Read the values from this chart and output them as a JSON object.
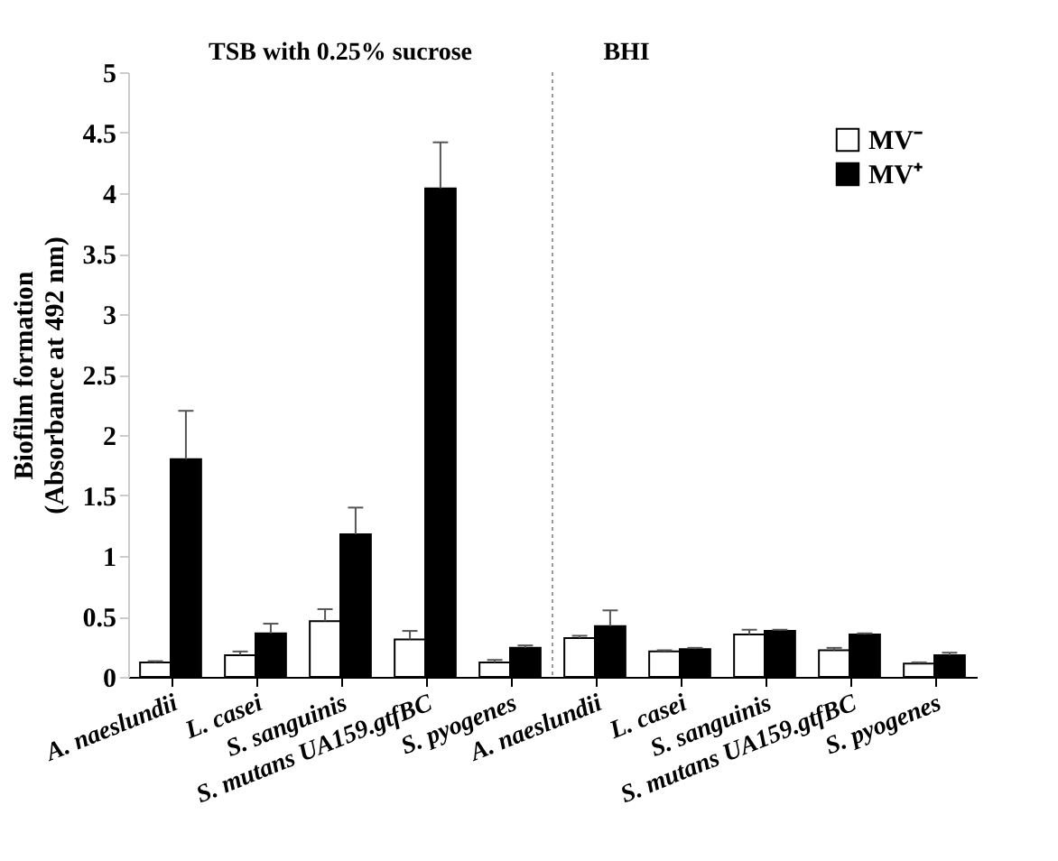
{
  "chart_data": {
    "type": "bar",
    "categories": [
      "A. naeslundii",
      "L. casei",
      "S. sanguinis",
      "S. mutans UA159.gtfBC",
      "S. pyogenes",
      "A. naeslundii",
      "L. casei",
      "S. sanguinis",
      "S. mutans UA159.gtfBC",
      "S. pyogenes"
    ],
    "series": [
      {
        "name": "MV⁻",
        "color": "#ffffff",
        "values": [
          0.12,
          0.18,
          0.46,
          0.31,
          0.12,
          0.32,
          0.21,
          0.35,
          0.22,
          0.11
        ],
        "errors": [
          [
            0.12,
            0.13
          ],
          [
            0.18,
            0.21
          ],
          [
            0.46,
            0.56
          ],
          [
            0.31,
            0.38
          ],
          [
            0.12,
            0.14
          ],
          [
            0.32,
            0.34
          ],
          [
            0.21,
            0.22
          ],
          [
            0.35,
            0.39
          ],
          [
            0.22,
            0.24
          ],
          [
            0.11,
            0.12
          ]
        ]
      },
      {
        "name": "MV⁺",
        "color": "#000000",
        "values": [
          1.8,
          0.36,
          1.18,
          4.04,
          0.24,
          0.42,
          0.23,
          0.38,
          0.35,
          0.18
        ],
        "errors": [
          [
            1.8,
            2.2
          ],
          [
            0.36,
            0.44
          ],
          [
            1.18,
            1.4
          ],
          [
            4.04,
            4.42
          ],
          [
            0.24,
            0.26
          ],
          [
            0.42,
            0.55
          ],
          [
            0.23,
            0.24
          ],
          [
            0.38,
            0.39
          ],
          [
            0.35,
            0.36
          ],
          [
            0.18,
            0.2
          ]
        ]
      }
    ],
    "ylabel": "Biofilm formation\n(Absorbance at 492 nm)",
    "ylim": [
      0,
      5
    ],
    "yticks": [
      0,
      0.5,
      1,
      1.5,
      2,
      2.5,
      3,
      3.5,
      4,
      4.5,
      5
    ],
    "annotations": [
      "TSB with 0.25% sucrose",
      "BHI"
    ],
    "grid": false,
    "legend": "top right"
  }
}
